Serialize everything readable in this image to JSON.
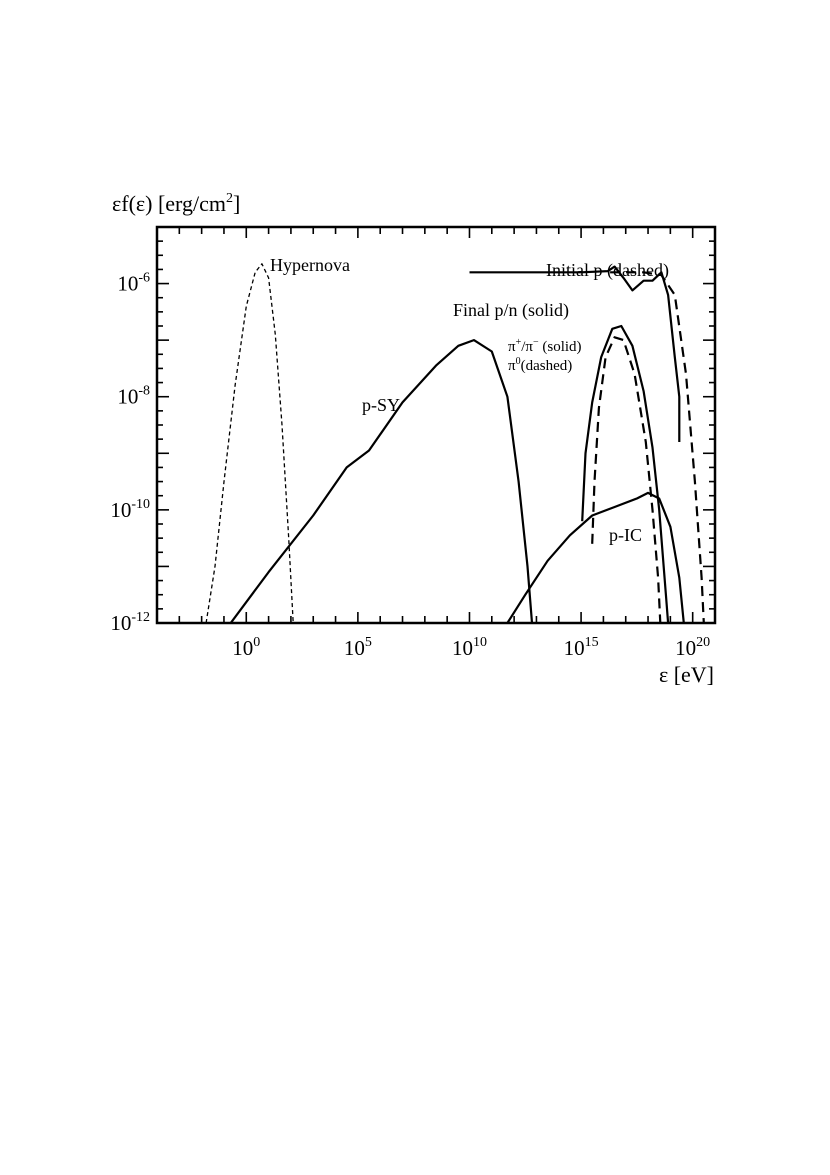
{
  "chart_data": {
    "type": "line",
    "x_scale": "log",
    "y_scale": "log",
    "xlim": [
      0.0001,
      1e+21
    ],
    "ylim": [
      1e-12,
      1e-05
    ],
    "x_ticks": [
      {
        "exp": 0,
        "mantissa": "10",
        "sup": "0"
      },
      {
        "exp": 5,
        "mantissa": "10",
        "sup": "5"
      },
      {
        "exp": 10,
        "mantissa": "10",
        "sup": "10"
      },
      {
        "exp": 15,
        "mantissa": "10",
        "sup": "15"
      },
      {
        "exp": 20,
        "mantissa": "10",
        "sup": "20"
      }
    ],
    "y_ticks": [
      {
        "exp": -6,
        "mantissa": "10",
        "sup": "-6"
      },
      {
        "exp": -8,
        "mantissa": "10",
        "sup": "-8"
      },
      {
        "exp": -10,
        "mantissa": "10",
        "sup": "-10"
      },
      {
        "exp": -12,
        "mantissa": "10",
        "sup": "-12"
      }
    ],
    "ylabel": {
      "main": "εf(ε) [erg/cm",
      "sup": "2",
      "end": "]"
    },
    "xlabel": "ε [eV]",
    "annotations": {
      "hypernova": "Hypernova",
      "psy": "p-SY",
      "initial_p": "Initial p (dashed)",
      "final_pn": "Final p/n (solid)",
      "pion_charged": {
        "a": "π",
        "asup": "+",
        "slash": "/π",
        "bsup": "−",
        "end": " (solid)"
      },
      "pion_neutral": {
        "a": "π",
        "asup": "0",
        "end": "(dashed)"
      },
      "pic": "p-IC"
    },
    "series": [
      {
        "style": "thin-dashed",
        "points": [
          [
            -1.8,
            -12
          ],
          [
            -1.4,
            -11
          ],
          [
            -1,
            -9.5
          ],
          [
            -0.5,
            -7.8
          ],
          [
            0,
            -6.4
          ],
          [
            0.4,
            -5.8
          ],
          [
            0.7,
            -5.65
          ],
          [
            1,
            -5.9
          ],
          [
            1.3,
            -6.9
          ],
          [
            1.6,
            -8.5
          ],
          [
            1.9,
            -10.5
          ],
          [
            2.1,
            -12
          ]
        ]
      },
      {
        "style": "solid",
        "points": [
          [
            -0.7,
            -12
          ],
          [
            1,
            -11.1
          ],
          [
            3,
            -10.1
          ],
          [
            4.5,
            -9.25
          ],
          [
            5.5,
            -8.95
          ],
          [
            7,
            -8.1
          ],
          [
            8.5,
            -7.45
          ],
          [
            9.5,
            -7.1
          ],
          [
            10.2,
            -7.0
          ],
          [
            11,
            -7.2
          ],
          [
            11.7,
            -8.0
          ],
          [
            12.2,
            -9.5
          ],
          [
            12.6,
            -11
          ],
          [
            12.8,
            -12
          ]
        ]
      },
      {
        "style": "solid",
        "points": [
          [
            11.7,
            -12
          ],
          [
            12.5,
            -11.5
          ],
          [
            13.5,
            -10.9
          ],
          [
            14.5,
            -10.45
          ],
          [
            15.5,
            -10.1
          ],
          [
            16.5,
            -9.95
          ],
          [
            17.5,
            -9.8
          ],
          [
            18,
            -9.7
          ],
          [
            18.5,
            -9.8
          ],
          [
            19,
            -10.3
          ],
          [
            19.4,
            -11.2
          ],
          [
            19.6,
            -12
          ]
        ]
      },
      {
        "style": "solid",
        "points": [
          [
            10,
            -5.8
          ],
          [
            14,
            -5.8
          ],
          [
            15,
            -5.8
          ],
          [
            16.2,
            -5.78
          ],
          [
            16.5,
            -5.7
          ],
          [
            16.9,
            -5.9
          ],
          [
            17.3,
            -6.12
          ],
          [
            17.8,
            -5.95
          ],
          [
            18.2,
            -5.95
          ],
          [
            18.6,
            -5.8
          ],
          [
            18.9,
            -6.2
          ],
          [
            19.2,
            -7.3
          ],
          [
            19.4,
            -8.0
          ],
          [
            19.4,
            -8.8
          ]
        ]
      },
      {
        "style": "dashed",
        "points": [
          [
            16.3,
            -5.8
          ],
          [
            17.8,
            -5.8
          ],
          [
            18.6,
            -5.85
          ],
          [
            19.2,
            -6.2
          ],
          [
            19.7,
            -7.6
          ],
          [
            20.1,
            -9.5
          ],
          [
            20.4,
            -11.2
          ],
          [
            20.5,
            -12
          ]
        ]
      },
      {
        "style": "solid",
        "points": [
          [
            15.05,
            -10.2
          ],
          [
            15.2,
            -9.0
          ],
          [
            15.5,
            -8.1
          ],
          [
            15.9,
            -7.3
          ],
          [
            16.4,
            -6.8
          ],
          [
            16.8,
            -6.75
          ],
          [
            17.3,
            -7.1
          ],
          [
            17.8,
            -7.9
          ],
          [
            18.2,
            -8.9
          ],
          [
            18.5,
            -10
          ],
          [
            18.8,
            -11.5
          ],
          [
            18.9,
            -12
          ]
        ]
      },
      {
        "style": "dashed",
        "points": [
          [
            15.5,
            -10.6
          ],
          [
            15.6,
            -9.5
          ],
          [
            15.8,
            -8.2
          ],
          [
            16.1,
            -7.3
          ],
          [
            16.5,
            -6.95
          ],
          [
            16.9,
            -7.0
          ],
          [
            17.4,
            -7.6
          ],
          [
            17.9,
            -8.8
          ],
          [
            18.2,
            -10
          ],
          [
            18.45,
            -11.2
          ],
          [
            18.55,
            -12
          ]
        ]
      }
    ]
  }
}
